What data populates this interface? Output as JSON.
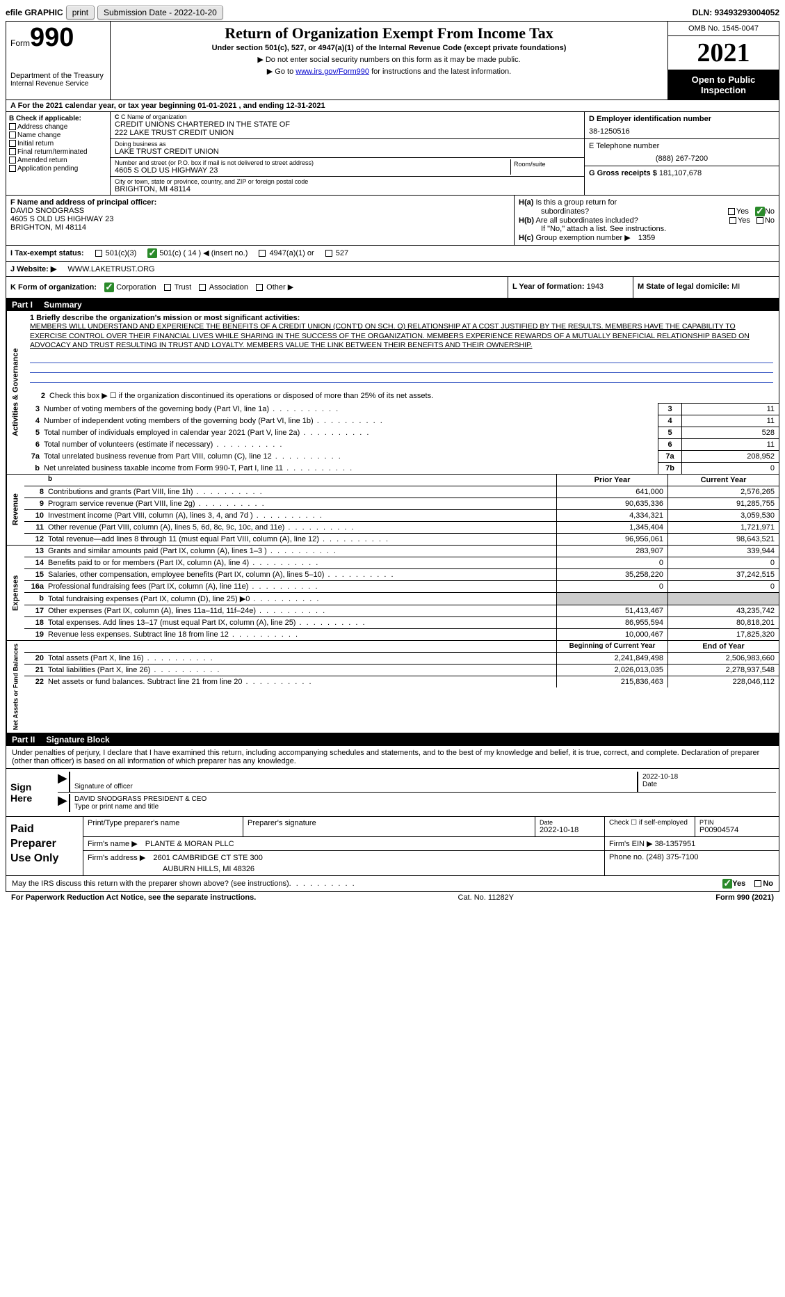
{
  "top": {
    "efile": "efile GRAPHIC",
    "print": "print",
    "submission": "Submission Date - 2022-10-20",
    "dln": "DLN: 93493293004052"
  },
  "header": {
    "form_word": "Form",
    "form_num": "990",
    "dept": "Department of the Treasury",
    "irs": "Internal Revenue Service",
    "title": "Return of Organization Exempt From Income Tax",
    "subtitle": "Under section 501(c), 527, or 4947(a)(1) of the Internal Revenue Code (except private foundations)",
    "inst1": "▶ Do not enter social security numbers on this form as it may be made public.",
    "inst2_pre": "▶ Go to ",
    "inst2_link": "www.irs.gov/Form990",
    "inst2_post": " for instructions and the latest information.",
    "omb": "OMB No. 1545-0047",
    "year": "2021",
    "open": "Open to Public Inspection"
  },
  "rowA": "A For the 2021 calendar year, or tax year beginning 01-01-2021    , and ending 12-31-2021",
  "colB": {
    "label": "B Check if applicable:",
    "addr": "Address change",
    "name": "Name change",
    "init": "Initial return",
    "final": "Final return/terminated",
    "amend": "Amended return",
    "app": "Application pending"
  },
  "colC": {
    "name_label": "C Name of organization",
    "name1": "CREDIT UNIONS CHARTERED IN THE STATE OF",
    "name2": "222 LAKE TRUST CREDIT UNION",
    "dba_label": "Doing business as",
    "dba": "LAKE TRUST CREDIT UNION",
    "street_label": "Number and street (or P.O. box if mail is not delivered to street address)",
    "street": "4605 S OLD US HIGHWAY 23",
    "room_label": "Room/suite",
    "city_label": "City or town, state or province, country, and ZIP or foreign postal code",
    "city": "BRIGHTON, MI  48114"
  },
  "colD": {
    "ein_label": "D Employer identification number",
    "ein": "38-1250516",
    "tel_label": "E Telephone number",
    "tel": "(888) 267-7200",
    "gross_label": "G Gross receipts $",
    "gross": "181,107,678"
  },
  "colF": {
    "label": "F  Name and address of principal officer:",
    "name": "DAVID SNODGRASS",
    "street": "4605 S OLD US HIGHWAY 23",
    "city": "BRIGHTON, MI  48114"
  },
  "colH": {
    "ha": "H(a)  Is this a group return for",
    "ha2": "subordinates?",
    "hb": "H(b)  Are all subordinates included?",
    "hb2": "If \"No,\" attach a list. See instructions.",
    "hc": "H(c)  Group exemption number ▶",
    "hc_val": "1359",
    "yes": "Yes",
    "no": "No"
  },
  "rowI": {
    "label": "I    Tax-exempt status:",
    "c3": "501(c)(3)",
    "c14": "501(c) ( 14 ) ◀ (insert no.)",
    "a1": "4947(a)(1) or",
    "s527": "527"
  },
  "rowJ": {
    "label": "J   Website: ▶",
    "val": "WWW.LAKETRUST.ORG"
  },
  "rowK": {
    "label": "K Form of organization:",
    "corp": "Corporation",
    "trust": "Trust",
    "assoc": "Association",
    "other": "Other ▶",
    "l_label": "L Year of formation:",
    "l_val": "1943",
    "m_label": "M State of legal domicile:",
    "m_val": "MI"
  },
  "part1": {
    "label": "Part I",
    "title": "Summary"
  },
  "gov": {
    "vlabel": "Activities & Governance",
    "l1": "1  Briefly describe the organization's mission or most significant activities:",
    "mission": "MEMBERS WILL UNDERSTAND AND EXPERIENCE THE BENEFITS OF A CREDIT UNION (CONT'D ON SCH. O) RELATIONSHIP AT A COST JUSTIFIED BY THE RESULTS. MEMBERS HAVE THE CAPABILITY TO EXERCISE CONTROL OVER THEIR FINANCIAL LIVES WHILE SHARING IN THE SUCCESS OF THE ORGANIZATION. MEMBERS EXPERIENCE REWARDS OF A MUTUALLY BENEFICIAL RELATIONSHIP BASED ON ADVOCACY AND TRUST RESULTING IN TRUST AND LOYALTY. MEMBERS VALUE THE LINK BETWEEN THEIR BENEFITS AND THEIR OWNERSHIP.",
    "l2": "Check this box ▶ ☐  if the organization discontinued its operations or disposed of more than 25% of its net assets.",
    "lines": [
      {
        "n": "3",
        "d": "Number of voting members of the governing body (Part VI, line 1a)",
        "bn": "3",
        "v": "11"
      },
      {
        "n": "4",
        "d": "Number of independent voting members of the governing body (Part VI, line 1b)",
        "bn": "4",
        "v": "11"
      },
      {
        "n": "5",
        "d": "Total number of individuals employed in calendar year 2021 (Part V, line 2a)",
        "bn": "5",
        "v": "528"
      },
      {
        "n": "6",
        "d": "Total number of volunteers (estimate if necessary)",
        "bn": "6",
        "v": "11"
      },
      {
        "n": "7a",
        "d": "Total unrelated business revenue from Part VIII, column (C), line 12",
        "bn": "7a",
        "v": "208,952"
      },
      {
        "n": "b",
        "d": "Net unrelated business taxable income from Form 990-T, Part I, line 11",
        "bn": "7b",
        "v": "0"
      }
    ]
  },
  "rev": {
    "vlabel": "Revenue",
    "prior": "Prior Year",
    "current": "Current Year",
    "rows": [
      {
        "n": "8",
        "d": "Contributions and grants (Part VIII, line 1h)",
        "p": "641,000",
        "c": "2,576,265"
      },
      {
        "n": "9",
        "d": "Program service revenue (Part VIII, line 2g)",
        "p": "90,635,336",
        "c": "91,285,755"
      },
      {
        "n": "10",
        "d": "Investment income (Part VIII, column (A), lines 3, 4, and 7d )",
        "p": "4,334,321",
        "c": "3,059,530"
      },
      {
        "n": "11",
        "d": "Other revenue (Part VIII, column (A), lines 5, 6d, 8c, 9c, 10c, and 11e)",
        "p": "1,345,404",
        "c": "1,721,971"
      },
      {
        "n": "12",
        "d": "Total revenue—add lines 8 through 11 (must equal Part VIII, column (A), line 12)",
        "p": "96,956,061",
        "c": "98,643,521"
      }
    ]
  },
  "exp": {
    "vlabel": "Expenses",
    "rows": [
      {
        "n": "13",
        "d": "Grants and similar amounts paid (Part IX, column (A), lines 1–3 )",
        "p": "283,907",
        "c": "339,944"
      },
      {
        "n": "14",
        "d": "Benefits paid to or for members (Part IX, column (A), line 4)",
        "p": "0",
        "c": "0"
      },
      {
        "n": "15",
        "d": "Salaries, other compensation, employee benefits (Part IX, column (A), lines 5–10)",
        "p": "35,258,220",
        "c": "37,242,515"
      },
      {
        "n": "16a",
        "d": "Professional fundraising fees (Part IX, column (A), line 11e)",
        "p": "0",
        "c": "0"
      },
      {
        "n": "b",
        "d": "Total fundraising expenses (Part IX, column (D), line 25) ▶0",
        "p": "",
        "c": "",
        "shaded": true
      },
      {
        "n": "17",
        "d": "Other expenses (Part IX, column (A), lines 11a–11d, 11f–24e)",
        "p": "51,413,467",
        "c": "43,235,742"
      },
      {
        "n": "18",
        "d": "Total expenses. Add lines 13–17 (must equal Part IX, column (A), line 25)",
        "p": "86,955,594",
        "c": "80,818,201"
      },
      {
        "n": "19",
        "d": "Revenue less expenses. Subtract line 18 from line 12",
        "p": "10,000,467",
        "c": "17,825,320"
      }
    ]
  },
  "net": {
    "vlabel": "Net Assets or Fund Balances",
    "h1": "Beginning of Current Year",
    "h2": "End of Year",
    "rows": [
      {
        "n": "20",
        "d": "Total assets (Part X, line 16)",
        "p": "2,241,849,498",
        "c": "2,506,983,660"
      },
      {
        "n": "21",
        "d": "Total liabilities (Part X, line 26)",
        "p": "2,026,013,035",
        "c": "2,278,937,548"
      },
      {
        "n": "22",
        "d": "Net assets or fund balances. Subtract line 21 from line 20",
        "p": "215,836,463",
        "c": "228,046,112"
      }
    ]
  },
  "part2": {
    "label": "Part II",
    "title": "Signature Block"
  },
  "sig": {
    "intro": "Under penalties of perjury, I declare that I have examined this return, including accompanying schedules and statements, and to the best of my knowledge and belief, it is true, correct, and complete. Declaration of preparer (other than officer) is based on all information of which preparer has any knowledge.",
    "here": "Sign Here",
    "sig_label": "Signature of officer",
    "date": "2022-10-18",
    "date_label": "Date",
    "name": "DAVID SNODGRASS  PRESIDENT & CEO",
    "name_label": "Type or print name and title"
  },
  "paid": {
    "label": "Paid Preparer Use Only",
    "h_name": "Print/Type preparer's name",
    "h_sig": "Preparer's signature",
    "h_date": "Date",
    "date": "2022-10-18",
    "check_label": "Check ☐ if self-employed",
    "ptin_label": "PTIN",
    "ptin": "P00904574",
    "firm_name_label": "Firm's name    ▶",
    "firm_name": "PLANTE & MORAN PLLC",
    "firm_ein_label": "Firm's EIN ▶",
    "firm_ein": "38-1357951",
    "firm_addr_label": "Firm's address ▶",
    "firm_addr1": "2601 CAMBRIDGE CT STE 300",
    "firm_addr2": "AUBURN HILLS, MI  48326",
    "phone_label": "Phone no.",
    "phone": "(248) 375-7100"
  },
  "discuss": {
    "q": "May the IRS discuss this return with the preparer shown above? (see instructions)",
    "yes": "Yes",
    "no": "No"
  },
  "footer": {
    "left": "For Paperwork Reduction Act Notice, see the separate instructions.",
    "mid": "Cat. No. 11282Y",
    "right": "Form 990 (2021)"
  }
}
